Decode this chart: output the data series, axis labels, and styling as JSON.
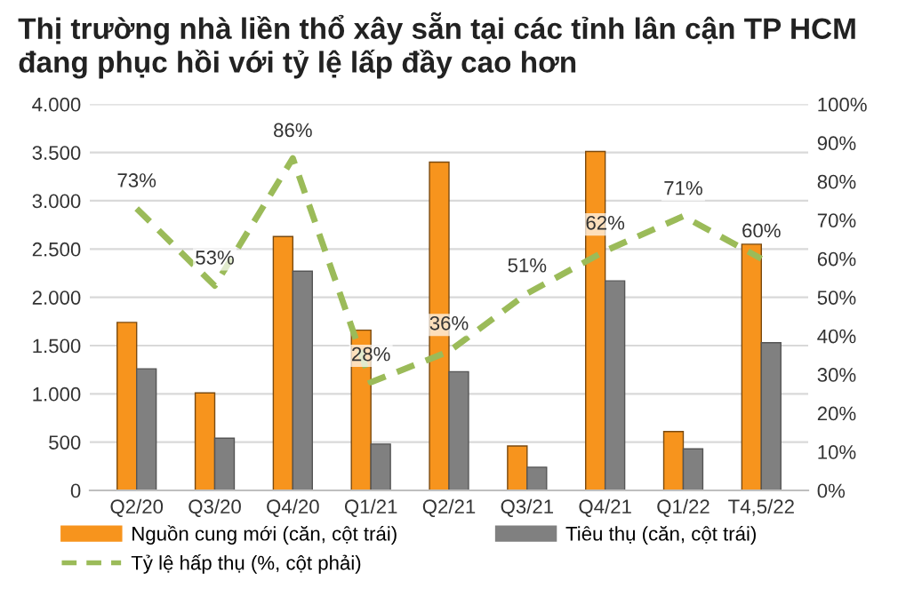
{
  "chart_data": {
    "type": "bar",
    "title": "Thị trường nhà liền thổ xây sẵn tại các tỉnh lân cận TP HCM đang phục hồi với tỷ lệ lấp đầy cao hơn",
    "categories": [
      "Q2/20",
      "Q3/20",
      "Q4/20",
      "Q1/21",
      "Q2/21",
      "Q3/21",
      "Q4/21",
      "Q1/22",
      "T4,5/22"
    ],
    "series": [
      {
        "name": "Nguồn cung mới (căn, cột trái)",
        "color": "#f7941d",
        "values": [
          1740,
          1010,
          2630,
          1660,
          3400,
          460,
          3510,
          610,
          2550
        ]
      },
      {
        "name": "Tiêu thụ (căn, cột trái)",
        "color": "#808080",
        "values": [
          1260,
          540,
          2270,
          480,
          1230,
          240,
          2170,
          430,
          1530
        ]
      },
      {
        "name": "Tỷ lệ hấp thụ (%, cột phải)",
        "type": "line",
        "axis": "y2",
        "color": "#9bbb59",
        "line_style": "dashed",
        "values": [
          73,
          53,
          86,
          28,
          36,
          51,
          62,
          71,
          60
        ],
        "value_labels": [
          "73%",
          "53%",
          "86%",
          "28%",
          "36%",
          "51%",
          "62%",
          "71%",
          "60%"
        ]
      }
    ],
    "ylim": [
      0,
      4000
    ],
    "yticks": [
      0,
      500,
      {
        "value": 1000,
        "label": "1.000"
      },
      {
        "value": 1500,
        "label": "1.500"
      },
      {
        "value": 2000,
        "label": "2.000"
      },
      {
        "value": 2500,
        "label": "2.500"
      },
      {
        "value": 3000,
        "label": "3.000"
      },
      {
        "value": 3500,
        "label": "3.500"
      },
      {
        "value": 4000,
        "label": "4.000"
      }
    ],
    "y2lim": [
      0,
      100
    ],
    "y2ticks": [
      {
        "value": 0,
        "label": "0%"
      },
      {
        "value": 10,
        "label": "10%"
      },
      {
        "value": 20,
        "label": "20%"
      },
      {
        "value": 30,
        "label": "30%"
      },
      {
        "value": 40,
        "label": "40%"
      },
      {
        "value": 50,
        "label": "50%"
      },
      {
        "value": 60,
        "label": "60%"
      },
      {
        "value": 70,
        "label": "70%"
      },
      {
        "value": 80,
        "label": "80%"
      },
      {
        "value": 90,
        "label": "90%"
      },
      {
        "value": 100,
        "label": "100%"
      }
    ],
    "grid": "y",
    "legend": "bottom"
  }
}
